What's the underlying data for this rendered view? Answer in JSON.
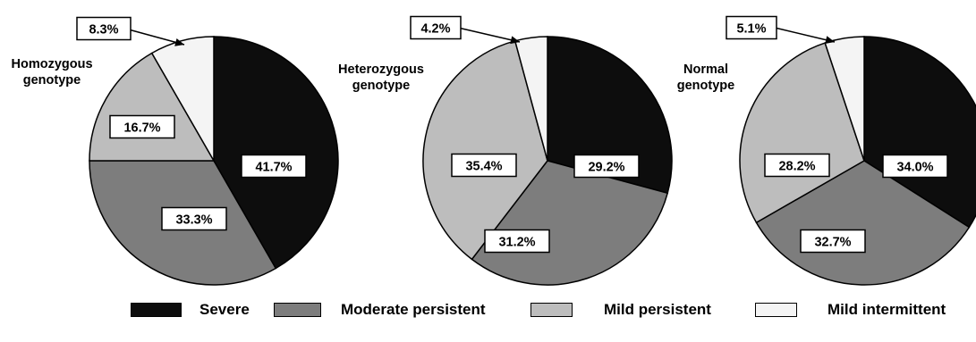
{
  "colors": {
    "Severe": "#0d0d0d",
    "Moderate persistent": "#7d7d7d",
    "Mild persistent": "#bdbdbd",
    "Mild intermittent": "#f4f4f4"
  },
  "legend": [
    {
      "label": "Severe",
      "color": "#0d0d0d"
    },
    {
      "label": "Moderate persistent",
      "color": "#7d7d7d"
    },
    {
      "label": "Mild persistent",
      "color": "#bdbdbd"
    },
    {
      "label": "Mild intermittent",
      "color": "#f4f4f4"
    }
  ],
  "chart_data": [
    {
      "type": "pie",
      "title": "Homozygous genotype",
      "categories": [
        "Severe",
        "Moderate persistent",
        "Mild persistent",
        "Mild intermittent"
      ],
      "values": [
        41.7,
        33.3,
        16.7,
        8.3
      ],
      "labels": [
        "41.7%",
        "33.3%",
        "16.7%",
        "8.3%"
      ]
    },
    {
      "type": "pie",
      "title": "Heterozygous genotype",
      "categories": [
        "Severe",
        "Moderate persistent",
        "Mild persistent",
        "Mild intermittent"
      ],
      "values": [
        29.2,
        31.2,
        35.4,
        4.2
      ],
      "labels": [
        "29.2%",
        "31.2%",
        "35.4%",
        "4.2%"
      ]
    },
    {
      "type": "pie",
      "title": "Normal genotype",
      "categories": [
        "Severe",
        "Moderate persistent",
        "Mild persistent",
        "Mild intermittent"
      ],
      "values": [
        34.0,
        32.7,
        28.2,
        5.1
      ],
      "labels": [
        "34.0%",
        "32.7%",
        "28.2%",
        "5.1%"
      ]
    }
  ]
}
